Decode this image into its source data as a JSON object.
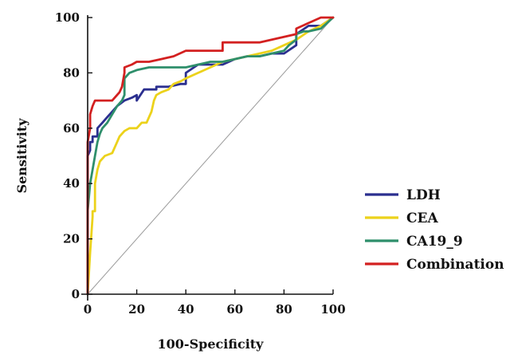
{
  "chart_data": {
    "type": "line",
    "title": "",
    "xlabel": "100-Specificity",
    "ylabel": "Sensitivity",
    "xlim": [
      0,
      100
    ],
    "ylim": [
      0,
      100
    ],
    "xticks": [
      0,
      20,
      40,
      60,
      80,
      100
    ],
    "yticks": [
      0,
      20,
      40,
      60,
      80,
      100
    ],
    "grid": false,
    "legend_position": "right",
    "reference_line": {
      "x": [
        0,
        100
      ],
      "y": [
        0,
        100
      ],
      "color": "#9a9a9a"
    },
    "series": [
      {
        "name": "LDH",
        "color": "#2b2f8f",
        "x": [
          0,
          0,
          1,
          1,
          2,
          2,
          4,
          4,
          6,
          8,
          10,
          12,
          15,
          18,
          20,
          20,
          23,
          25,
          28,
          28,
          33,
          38,
          40,
          40,
          45,
          50,
          55,
          60,
          65,
          70,
          75,
          80,
          85,
          85,
          90,
          95,
          100
        ],
        "y": [
          0,
          50,
          52,
          55,
          55,
          57,
          57,
          60,
          62,
          64,
          66,
          68,
          70,
          71,
          72,
          70,
          74,
          74,
          74,
          75,
          75,
          76,
          76,
          80,
          83,
          83,
          83,
          85,
          86,
          86,
          87,
          87,
          90,
          94,
          97,
          97,
          100
        ]
      },
      {
        "name": "CEA",
        "color": "#ecd21b",
        "x": [
          0,
          1,
          2,
          2,
          3,
          3,
          4,
          5,
          7,
          10,
          12,
          13,
          15,
          17,
          20,
          22,
          24,
          26,
          27,
          28,
          30,
          33,
          35,
          38,
          40,
          45,
          50,
          55,
          60,
          65,
          70,
          75,
          80,
          85,
          90,
          95,
          100
        ],
        "y": [
          0,
          15,
          28,
          30,
          30,
          40,
          45,
          48,
          50,
          51,
          55,
          57,
          59,
          60,
          60,
          62,
          62,
          66,
          70,
          72,
          73,
          74,
          76,
          77,
          78,
          80,
          82,
          84,
          85,
          86,
          87,
          88,
          90,
          92,
          95,
          97,
          100
        ]
      },
      {
        "name": "CA19_9",
        "color": "#2e8f6b",
        "x": [
          0,
          0,
          1,
          2,
          3,
          4,
          5,
          6,
          8,
          10,
          12,
          14,
          15,
          15,
          17,
          20,
          25,
          30,
          35,
          40,
          50,
          55,
          60,
          65,
          70,
          75,
          80,
          82,
          85,
          85,
          88,
          90,
          95,
          100
        ],
        "y": [
          0,
          30,
          40,
          45,
          50,
          55,
          58,
          60,
          62,
          65,
          68,
          70,
          72,
          78,
          80,
          81,
          82,
          82,
          82,
          82,
          84,
          84,
          85,
          86,
          86,
          87,
          88,
          90,
          92,
          94,
          95,
          95,
          96,
          100
        ]
      },
      {
        "name": "Combination",
        "color": "#d32020",
        "x": [
          0,
          0,
          1,
          1,
          2,
          3,
          4,
          10,
          13,
          14,
          15,
          15,
          18,
          20,
          25,
          30,
          35,
          40,
          45,
          55,
          55,
          60,
          65,
          70,
          75,
          80,
          85,
          85,
          90,
          95,
          100
        ],
        "y": [
          0,
          55,
          60,
          65,
          68,
          70,
          70,
          70,
          73,
          75,
          80,
          82,
          83,
          84,
          84,
          85,
          86,
          88,
          88,
          88,
          91,
          91,
          91,
          91,
          92,
          93,
          94,
          96,
          98,
          100,
          100
        ]
      }
    ]
  }
}
